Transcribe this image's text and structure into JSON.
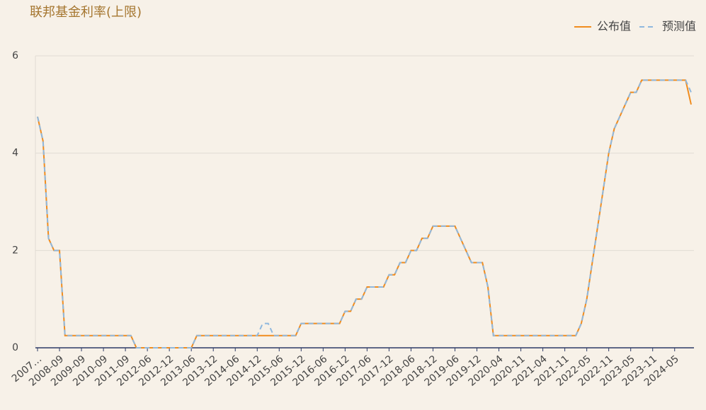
{
  "chart_data": {
    "type": "line",
    "title": "联邦基金利率(上限)",
    "categories": [
      "2007…",
      null,
      null,
      null,
      "2008-09",
      null,
      null,
      null,
      "2009-09",
      null,
      null,
      null,
      "2010-09",
      null,
      null,
      null,
      "2011-09",
      null,
      null,
      null,
      "2012-06",
      null,
      null,
      null,
      "2012-12",
      null,
      null,
      null,
      "2013-06",
      null,
      null,
      null,
      "2013-12",
      null,
      null,
      null,
      "2014-06",
      null,
      null,
      null,
      "2014-12",
      null,
      null,
      null,
      "2015-06",
      null,
      null,
      null,
      "2015-12",
      null,
      null,
      null,
      "2016-06",
      null,
      null,
      null,
      "2016-12",
      null,
      null,
      null,
      "2017-06",
      null,
      null,
      null,
      "2017-12",
      null,
      null,
      null,
      "2018-06",
      null,
      null,
      null,
      "2018-12",
      null,
      null,
      null,
      "2019-06",
      null,
      null,
      null,
      "2019-12",
      null,
      null,
      null,
      "2020-04",
      null,
      null,
      null,
      "2020-11",
      null,
      null,
      null,
      "2021-04",
      null,
      null,
      null,
      "2021-11",
      null,
      null,
      null,
      "2022-05",
      null,
      null,
      null,
      "2022-11",
      null,
      null,
      null,
      "2023-05",
      null,
      null,
      null,
      "2023-11",
      null,
      null,
      null,
      "2024-05",
      null,
      null,
      null
    ],
    "series": [
      {
        "name": "公布值",
        "color": "#f08c1e",
        "dashed": false,
        "values": [
          4.75,
          4.25,
          2.25,
          2,
          2,
          0.25,
          0.25,
          0.25,
          0.25,
          0.25,
          0.25,
          0.25,
          0.25,
          0.25,
          0.25,
          0.25,
          0.25,
          0.25,
          0,
          0,
          0,
          0,
          0,
          0,
          0,
          0,
          0,
          0,
          0,
          0.25,
          0.25,
          0.25,
          0.25,
          0.25,
          0.25,
          0.25,
          0.25,
          0.25,
          0.25,
          0.25,
          0.25,
          0.25,
          0.25,
          0.25,
          0.25,
          0.25,
          0.25,
          0.25,
          0.5,
          0.5,
          0.5,
          0.5,
          0.5,
          0.5,
          0.5,
          0.5,
          0.75,
          0.75,
          1,
          1,
          1.25,
          1.25,
          1.25,
          1.25,
          1.5,
          1.5,
          1.75,
          1.75,
          2,
          2,
          2.25,
          2.25,
          2.5,
          2.5,
          2.5,
          2.5,
          2.5,
          2.25,
          2,
          1.75,
          1.75,
          1.75,
          1.25,
          0.25,
          0.25,
          0.25,
          0.25,
          0.25,
          0.25,
          0.25,
          0.25,
          0.25,
          0.25,
          0.25,
          0.25,
          0.25,
          0.25,
          0.25,
          0.25,
          0.5,
          1,
          1.75,
          2.5,
          3.25,
          4,
          4.5,
          4.75,
          5,
          5.25,
          5.25,
          5.5,
          5.5,
          5.5,
          5.5,
          5.5,
          5.5,
          5.5,
          5.5,
          5.5,
          5
        ]
      },
      {
        "name": "预测值",
        "color": "#8fb8de",
        "dashed": true,
        "values": [
          4.75,
          4.25,
          2.25,
          2,
          2,
          0.25,
          0.25,
          0.25,
          0.25,
          0.25,
          0.25,
          0.25,
          0.25,
          0.25,
          0.25,
          0.25,
          0.25,
          0.25,
          0,
          0,
          0,
          0,
          0,
          0,
          0,
          0,
          0,
          0,
          0,
          0.25,
          0.25,
          0.25,
          0.25,
          0.25,
          0.25,
          0.25,
          0.25,
          0.25,
          0.25,
          0.25,
          0.25,
          0.5,
          0.5,
          0.25,
          0.25,
          0.25,
          0.25,
          0.25,
          0.5,
          0.5,
          0.5,
          0.5,
          0.5,
          0.5,
          0.5,
          0.5,
          0.75,
          0.75,
          1,
          1,
          1.25,
          1.25,
          1.25,
          1.25,
          1.5,
          1.5,
          1.75,
          1.75,
          2,
          2,
          2.25,
          2.25,
          2.5,
          2.5,
          2.5,
          2.5,
          2.5,
          2.25,
          2,
          1.75,
          1.75,
          1.75,
          1.25,
          0.25,
          0.25,
          0.25,
          0.25,
          0.25,
          0.25,
          0.25,
          0.25,
          0.25,
          0.25,
          0.25,
          0.25,
          0.25,
          0.25,
          0.25,
          0.25,
          0.5,
          1,
          1.75,
          2.5,
          3.25,
          4,
          4.5,
          4.75,
          5,
          5.25,
          5.25,
          5.5,
          5.5,
          5.5,
          5.5,
          5.5,
          5.5,
          5.5,
          5.5,
          5.5,
          5.25
        ]
      }
    ],
    "ylim": [
      0,
      6
    ],
    "yticks": [
      0,
      2,
      4,
      6
    ],
    "grid": true,
    "legend": "top-right"
  }
}
